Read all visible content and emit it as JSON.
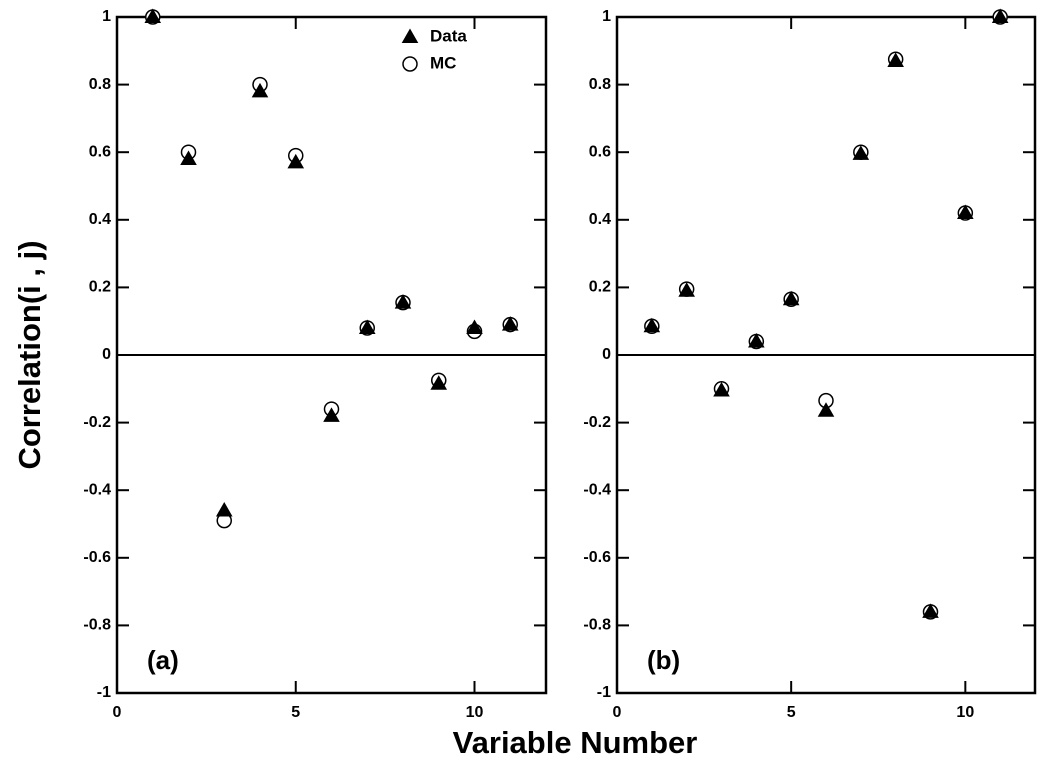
{
  "chart_data": [
    {
      "type": "scatter",
      "ylabel": "Correlation(i , j)",
      "xlabel": "Variable Number",
      "panel_label": "(a)",
      "x": [
        1,
        2,
        3,
        4,
        5,
        6,
        7,
        8,
        9,
        10,
        11
      ],
      "series": [
        {
          "name": "Data",
          "marker": "triangle",
          "filled": true,
          "color": "#000000",
          "values": [
            1.0,
            0.58,
            -0.46,
            0.78,
            0.57,
            -0.18,
            0.08,
            0.155,
            -0.085,
            0.08,
            0.09
          ]
        },
        {
          "name": "MC",
          "marker": "circle",
          "filled": false,
          "color": "#000000",
          "values": [
            1.0,
            0.6,
            -0.49,
            0.8,
            0.59,
            -0.16,
            0.08,
            0.155,
            -0.075,
            0.07,
            0.09
          ]
        }
      ],
      "xlim": [
        0,
        12
      ],
      "ylim": [
        -1,
        1
      ],
      "xticks": [
        0,
        5,
        10
      ],
      "yticks": [
        1,
        0.8,
        0.6,
        0.4,
        0.2,
        0,
        -0.2,
        -0.4,
        -0.6,
        -0.8,
        -1
      ],
      "zero_line": true,
      "legend": "top-right"
    },
    {
      "type": "scatter",
      "panel_label": "(b)",
      "x": [
        1,
        2,
        3,
        4,
        5,
        6,
        7,
        8,
        9,
        10,
        11
      ],
      "series": [
        {
          "marker": "triangle",
          "filled": true,
          "color": "#000000",
          "values": [
            0.085,
            0.19,
            -0.105,
            0.04,
            0.165,
            -0.165,
            0.595,
            0.87,
            -0.76,
            0.42,
            1.0
          ]
        },
        {
          "marker": "circle",
          "filled": false,
          "color": "#000000",
          "values": [
            0.085,
            0.195,
            -0.1,
            0.04,
            0.165,
            -0.135,
            0.6,
            0.875,
            -0.76,
            0.42,
            1.0
          ]
        }
      ],
      "xlim": [
        0,
        12
      ],
      "ylim": [
        -1,
        1
      ],
      "xticks": [
        0,
        5,
        10
      ],
      "yticks": [
        1,
        0.8,
        0.6,
        0.4,
        0.2,
        0,
        -0.2,
        -0.4,
        -0.6,
        -0.8,
        -1
      ],
      "zero_line": true
    }
  ]
}
